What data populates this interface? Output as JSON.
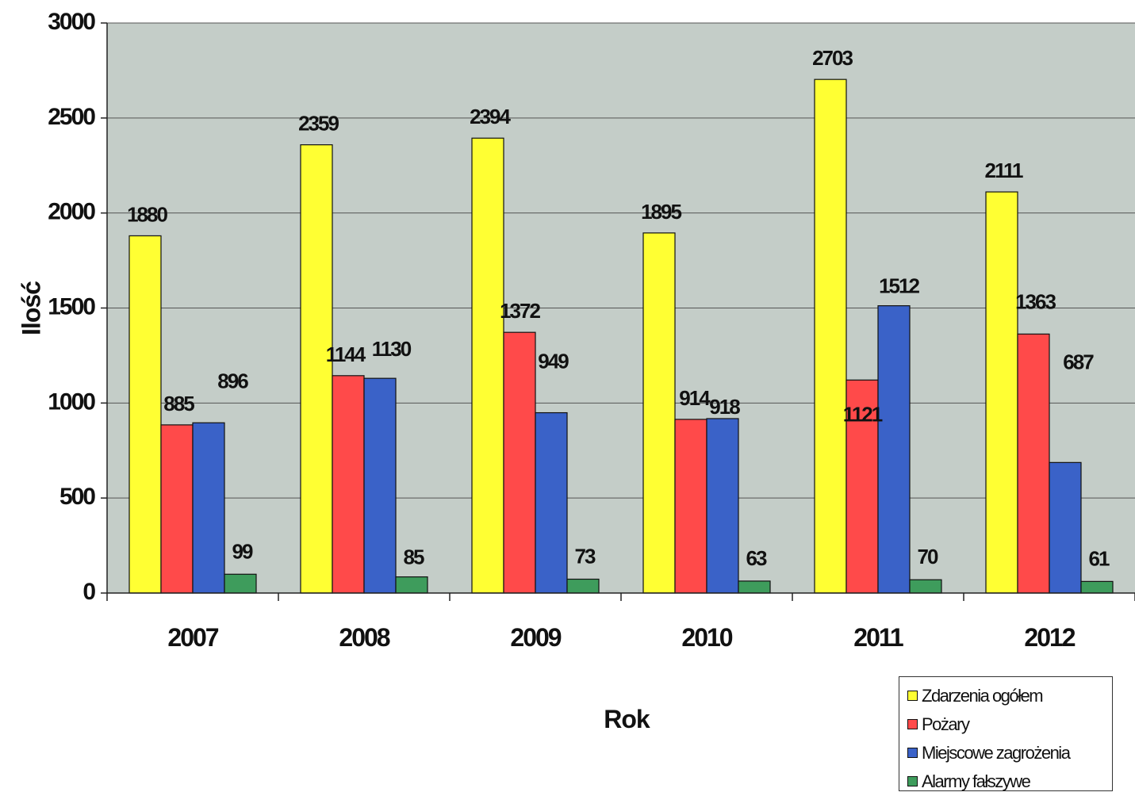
{
  "chart_data": {
    "type": "bar",
    "categories": [
      "2007",
      "2008",
      "2009",
      "2010",
      "2011",
      "2012"
    ],
    "series": [
      {
        "name": "Zdarzenia ogółem",
        "color": "#ffff33",
        "values": [
          1880,
          2359,
          2394,
          1895,
          2703,
          2111
        ]
      },
      {
        "name": "Pożary",
        "color": "#ff4a4a",
        "values": [
          885,
          1144,
          1372,
          914,
          1121,
          1363
        ]
      },
      {
        "name": "Miejscowe zagrożenia",
        "color": "#3a62c8",
        "values": [
          896,
          1130,
          949,
          918,
          1512,
          687
        ]
      },
      {
        "name": "Alarmy fałszywe",
        "color": "#3e9c5c",
        "values": [
          99,
          85,
          73,
          63,
          70,
          61
        ]
      }
    ],
    "xlabel": "Rok",
    "ylabel": "Ilość",
    "ylim": [
      0,
      3000
    ],
    "yticks": [
      0,
      500,
      1000,
      1500,
      2000,
      2500,
      3000
    ],
    "grid": true,
    "legend_position": "bottom-right",
    "plot_background": "#c4cdc8"
  }
}
